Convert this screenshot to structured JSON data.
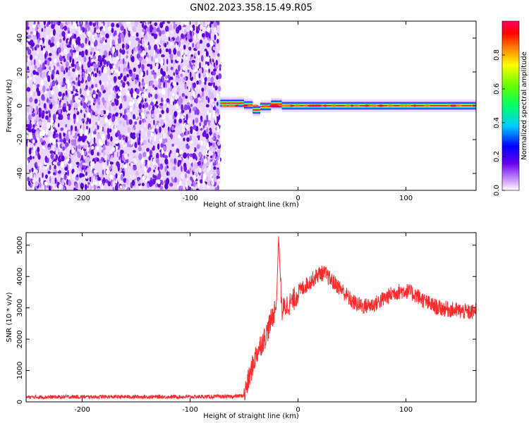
{
  "title": "GN02.2023.358.15.49.R05",
  "chart_data": [
    {
      "type": "heatmap",
      "xlabel": "Height of straight line (km)",
      "ylabel": "Frequency (Hz)",
      "xlim": [
        -252,
        165
      ],
      "ylim": [
        -50,
        50
      ],
      "xticks": [
        -200,
        -100,
        0,
        100
      ],
      "yticks": [
        -40,
        -20,
        0,
        20,
        40
      ],
      "colorbar": {
        "label": "Normalized spectral amplitude",
        "range": [
          0,
          1
        ],
        "ticks": [
          "0.0",
          "0.2",
          "0.4",
          "0.6",
          "0.8"
        ]
      },
      "signal_band": {
        "center_hz": 0,
        "noise_region_x": [
          -252,
          -72
        ],
        "signal_region_x": [
          -72,
          165
        ],
        "segments": [
          {
            "x": [
              -72,
              -62
            ],
            "y": 1.5
          },
          {
            "x": [
              -62,
              -50
            ],
            "y": 1.5
          },
          {
            "x": [
              -50,
              -42
            ],
            "y": 0.5
          },
          {
            "x": [
              -42,
              -35
            ],
            "y": -2.5
          },
          {
            "x": [
              -35,
              -25
            ],
            "y": -0.5
          },
          {
            "x": [
              -25,
              -15
            ],
            "y": 1.0
          },
          {
            "x": [
              -15,
              0
            ],
            "y": 0.0
          },
          {
            "x": [
              0,
              165
            ],
            "y": 0.0
          }
        ]
      },
      "grid": false
    },
    {
      "type": "line",
      "xlabel": "Height of straight line (km)",
      "ylabel": "SNR (10 * v/v)",
      "xlim": [
        -252,
        165
      ],
      "ylim": [
        0,
        5400
      ],
      "xticks": [
        -200,
        -100,
        0,
        100
      ],
      "yticks": [
        0,
        1000,
        2000,
        3000,
        4000,
        5000
      ],
      "color": "#ff2a2a",
      "series": [
        {
          "x": [
            -252,
            -200,
            -150,
            -100,
            -60,
            -50,
            -45,
            -40,
            -35,
            -30,
            -25,
            -20,
            -18,
            -15,
            -10,
            -5,
            0,
            10,
            20,
            25,
            30,
            40,
            50,
            60,
            70,
            80,
            90,
            100,
            110,
            120,
            130,
            140,
            150,
            160,
            165
          ],
          "values": [
            150,
            160,
            160,
            160,
            170,
            200,
            800,
            1400,
            1800,
            2100,
            2600,
            3100,
            5300,
            2900,
            3100,
            3200,
            3500,
            3800,
            4100,
            4100,
            3900,
            3600,
            3200,
            3050,
            3100,
            3300,
            3500,
            3550,
            3400,
            3150,
            3000,
            2950,
            2900,
            2850,
            2900
          ]
        }
      ],
      "grid": false
    }
  ]
}
